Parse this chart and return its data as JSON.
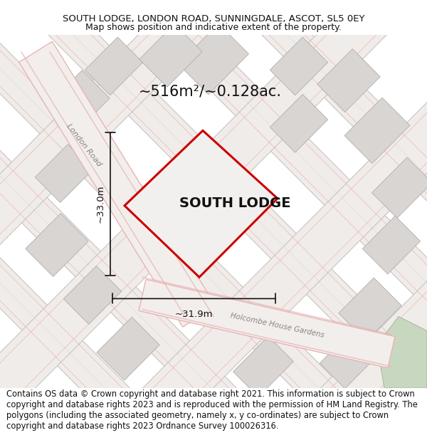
{
  "title_line1": "SOUTH LODGE, LONDON ROAD, SUNNINGDALE, ASCOT, SL5 0EY",
  "title_line2": "Map shows position and indicative extent of the property.",
  "area_label": "~516m²/~0.128ac.",
  "width_label": "~31.9m",
  "height_label": "~33.0m",
  "property_label": "SOUTH LODGE",
  "road_label1": "London Road",
  "road_label2": "Holcombe House Gardens",
  "footer_text": "Contains OS data © Crown copyright and database right 2021. This information is subject to Crown copyright and database rights 2023 and is reproduced with the permission of HM Land Registry. The polygons (including the associated geometry, namely x, y co-ordinates) are subject to Crown copyright and database rights 2023 Ordnance Survey 100026316.",
  "map_bg": "#eeecea",
  "building_fill": "#d8d5d2",
  "building_edge": "#b0aeac",
  "road_fill": "#f5f0ee",
  "road_edge_pink": "#e8b4b4",
  "road_edge_gray": "#c8c4c0",
  "property_outline_color": "#cc0000",
  "property_fill": "#f2f0ee",
  "green_fill": "#c8d8c0",
  "green_edge": "#a0b898",
  "dim_color": "#111111",
  "label_color": "#111111",
  "road_text_color": "#888880",
  "title_fontsize": 9.5,
  "subtitle_fontsize": 9.0,
  "area_fontsize": 15,
  "dim_fontsize": 9.5,
  "prop_label_fontsize": 14,
  "road_label_fontsize": 8,
  "footer_fontsize": 8.3
}
